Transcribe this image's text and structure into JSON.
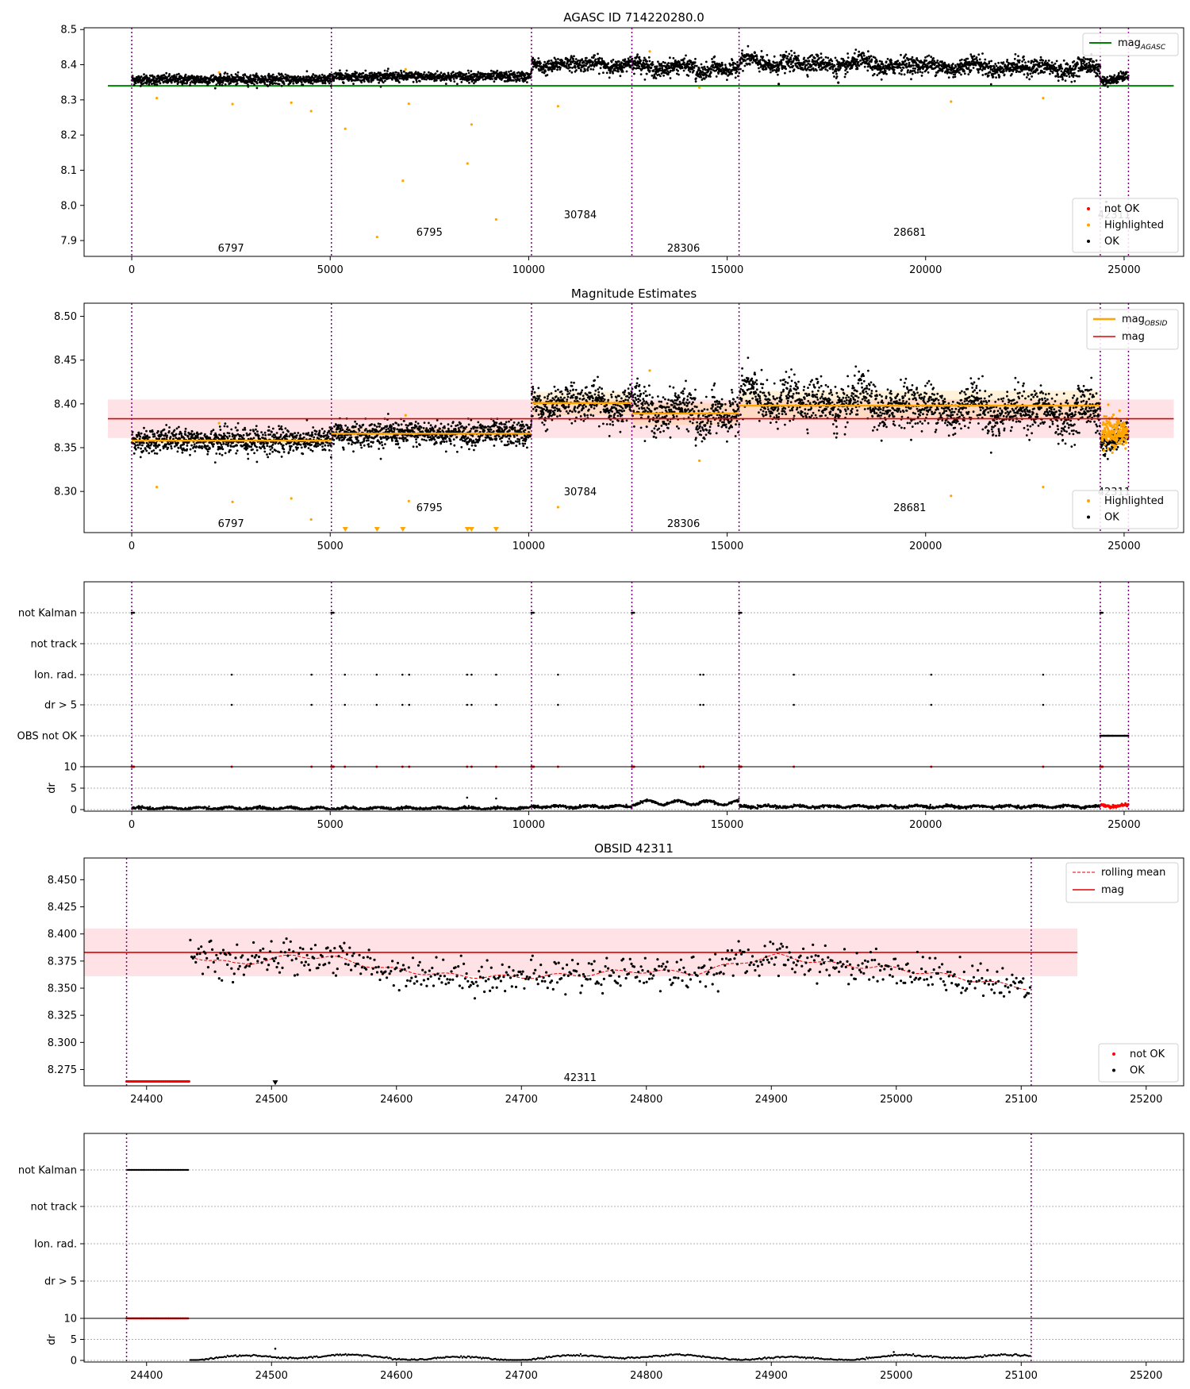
{
  "colors": {
    "ok": "#000000",
    "highlighted": "#ffa500",
    "not_ok": "#ff0000",
    "agasc": "#008000",
    "mag": "#e00000",
    "band": "#ffb6c1",
    "obsid_vline": "#7f007f"
  },
  "chart_data": [
    {
      "type": "scatter",
      "title": "AGASC ID 714220280.0",
      "xlim": [
        -1200,
        26500
      ],
      "ylim": [
        7.855,
        8.505
      ],
      "yticks": [
        "7.9",
        "8.0",
        "8.1",
        "8.2",
        "8.3",
        "8.4",
        "8.5"
      ],
      "xticks": [
        "0",
        "5000",
        "10000",
        "15000",
        "20000",
        "25000"
      ],
      "mag_agasc": 8.34,
      "obsid_boundaries": [
        0,
        5030,
        10070,
        12600,
        15300,
        24400,
        25110
      ],
      "obsid_labels": [
        {
          "text": "6797",
          "x": 2500,
          "y": 7.88
        },
        {
          "text": "6795",
          "x": 7500,
          "y": 7.925
        },
        {
          "text": "30784",
          "x": 11300,
          "y": 7.975
        },
        {
          "text": "28306",
          "x": 13900,
          "y": 7.88
        },
        {
          "text": "28681",
          "x": 19600,
          "y": 7.925
        },
        {
          "text": "42311",
          "x": 24750,
          "y": 7.975
        }
      ],
      "ok_segments": [
        {
          "x": [
            0,
            5030
          ],
          "mean": 8.358,
          "spread": 0.013
        },
        {
          "x": [
            5030,
            10070
          ],
          "mean": 8.366,
          "spread": 0.013
        },
        {
          "x": [
            10070,
            12600
          ],
          "mean": 8.401,
          "spread": 0.018
        },
        {
          "x": [
            12600,
            15300
          ],
          "mean": 8.394,
          "spread": 0.02
        },
        {
          "x": [
            15300,
            24400
          ],
          "mean": 8.397,
          "spread": 0.022
        },
        {
          "x": [
            24400,
            25110
          ],
          "mean": 8.363,
          "spread": 0.012
        }
      ],
      "highlighted_points": [
        {
          "x": 630,
          "y": 8.305
        },
        {
          "x": 2540,
          "y": 8.288
        },
        {
          "x": 4020,
          "y": 8.292
        },
        {
          "x": 4520,
          "y": 8.268
        },
        {
          "x": 5380,
          "y": 8.218
        },
        {
          "x": 6180,
          "y": 7.91
        },
        {
          "x": 6830,
          "y": 8.07
        },
        {
          "x": 6980,
          "y": 8.289
        },
        {
          "x": 8460,
          "y": 8.119
        },
        {
          "x": 8560,
          "y": 8.23
        },
        {
          "x": 9180,
          "y": 7.96
        },
        {
          "x": 10740,
          "y": 8.282
        },
        {
          "x": 14300,
          "y": 8.335
        },
        {
          "x": 20640,
          "y": 8.295
        },
        {
          "x": 22960,
          "y": 8.305
        },
        {
          "x": 2200,
          "y": 8.378
        },
        {
          "x": 6900,
          "y": 8.387
        },
        {
          "x": 13050,
          "y": 8.438
        }
      ],
      "extra_ok_points": [
        {
          "x": 24550,
          "y": 8.01
        },
        {
          "x": 16300,
          "y": 8.345
        },
        {
          "x": 17800,
          "y": 8.349
        }
      ],
      "legend": {
        "position": "upper right",
        "entries": [
          "mag<sub>AGASC</sub>"
        ]
      },
      "legend2": {
        "position": "lower right",
        "entries": [
          "not OK",
          "Highlighted",
          "OK"
        ]
      }
    },
    {
      "type": "scatter",
      "title": "Magnitude Estimates",
      "xlim": [
        -1200,
        26500
      ],
      "ylim": [
        8.253,
        8.515
      ],
      "yticks": [
        "8.30",
        "8.35",
        "8.40",
        "8.45",
        "8.50"
      ],
      "xticks": [
        "0",
        "5000",
        "10000",
        "15000",
        "20000",
        "25000"
      ],
      "mag": 8.383,
      "mag_band": [
        8.361,
        8.405
      ],
      "obsid_labels": [
        {
          "text": "6797",
          "x": 2500,
          "y": 8.264
        },
        {
          "text": "6795",
          "x": 7500,
          "y": 8.282
        },
        {
          "text": "30784",
          "x": 11300,
          "y": 8.3
        },
        {
          "text": "28306",
          "x": 13900,
          "y": 8.264
        },
        {
          "text": "28681",
          "x": 19600,
          "y": 8.282
        },
        {
          "text": "42311",
          "x": 24750,
          "y": 8.3
        }
      ],
      "mag_obsid": [
        {
          "x": [
            0,
            5030
          ],
          "mag": 8.358,
          "band": [
            8.354,
            8.362
          ]
        },
        {
          "x": [
            5030,
            10070
          ],
          "mag": 8.366,
          "band": [
            8.361,
            8.372
          ]
        },
        {
          "x": [
            10070,
            12600
          ],
          "mag": 8.401,
          "band": [
            8.387,
            8.414
          ]
        },
        {
          "x": [
            12600,
            15300
          ],
          "mag": 8.389,
          "band": [
            8.376,
            8.401
          ]
        },
        {
          "x": [
            15300,
            24400
          ],
          "mag": 8.398,
          "band": [
            8.383,
            8.415
          ]
        },
        {
          "x": [
            24400,
            25110
          ],
          "mag": 8.363,
          "band": [
            8.355,
            8.371
          ]
        }
      ],
      "legend": {
        "position": "upper right",
        "entries": [
          "mag<sub>OBSID</sub>",
          "mag"
        ]
      },
      "legend2": {
        "position": "lower right",
        "entries": [
          "Highlighted",
          "OK"
        ]
      }
    },
    {
      "type": "scatter",
      "title": "",
      "xlim": [
        -1200,
        26500
      ],
      "flag_rows": [
        "not Kalman",
        "not track",
        "Ion. rad.",
        "dr > 5",
        "OBS not OK"
      ],
      "flag_points": {
        "not Kalman": [
          0,
          5030,
          10070,
          12600,
          15300,
          24400
        ],
        "not track": [],
        "Ion. rad.": [
          2520,
          4530,
          5370,
          6170,
          6820,
          6990,
          8450,
          8560,
          9180,
          10740,
          14320,
          14400,
          16680,
          20140,
          22960
        ],
        "dr > 5": [
          2520,
          4530,
          5370,
          6170,
          6820,
          6990,
          8450,
          8560,
          9180,
          10740,
          14320,
          14400,
          16680,
          20140,
          22960
        ]
      },
      "obs_not_ok_range": [
        24400,
        25110
      ],
      "dr_yticks": [
        "0",
        "5",
        "10"
      ],
      "dr_ylabel": "dr",
      "xticks": [
        "0",
        "5000",
        "10000",
        "15000",
        "20000",
        "25000"
      ]
    },
    {
      "type": "scatter",
      "title": "OBSID 42311",
      "xlim": [
        24350,
        25230
      ],
      "ylim": [
        8.26,
        8.47
      ],
      "yticks": [
        "8.275",
        "8.300",
        "8.325",
        "8.350",
        "8.375",
        "8.400",
        "8.425",
        "8.450"
      ],
      "xticks": [
        "24400",
        "24500",
        "24600",
        "24700",
        "24800",
        "24900",
        "25000",
        "25100",
        "25200"
      ],
      "mag": 8.383,
      "mag_band": [
        8.361,
        8.405
      ],
      "band_xrange": [
        24350,
        25145
      ],
      "obsid_boundaries": [
        24384,
        25108
      ],
      "obsid_label": {
        "text": "42311",
        "x": 24747,
        "y": 8.268
      },
      "not_ok_range": [
        24384,
        24434
      ],
      "trend_knots": [
        [
          24435,
          8.38
        ],
        [
          24470,
          8.372
        ],
        [
          24490,
          8.375
        ],
        [
          24520,
          8.38
        ],
        [
          24550,
          8.378
        ],
        [
          24590,
          8.368
        ],
        [
          24640,
          8.362
        ],
        [
          24690,
          8.36
        ],
        [
          24740,
          8.362
        ],
        [
          24790,
          8.366
        ],
        [
          24840,
          8.364
        ],
        [
          24880,
          8.375
        ],
        [
          24905,
          8.38
        ],
        [
          24950,
          8.372
        ],
        [
          25000,
          8.368
        ],
        [
          25050,
          8.36
        ],
        [
          25080,
          8.354
        ],
        [
          25108,
          8.35
        ]
      ],
      "legend": {
        "position": "upper right",
        "entries": [
          "rolling mean",
          "mag"
        ]
      },
      "legend2": {
        "position": "lower right",
        "entries": [
          "not OK",
          "OK"
        ]
      }
    },
    {
      "type": "scatter",
      "title": "",
      "xlim": [
        24350,
        25230
      ],
      "flag_rows": [
        "not Kalman",
        "not track",
        "Ion. rad.",
        "dr > 5"
      ],
      "not_kalman_range": [
        24384,
        24434
      ],
      "dr_yticks": [
        "0",
        "5",
        "10"
      ],
      "dr_ylabel": "dr",
      "xticks": [
        "24400",
        "24500",
        "24600",
        "24700",
        "24800",
        "24900",
        "25000",
        "25100",
        "25200"
      ]
    }
  ]
}
